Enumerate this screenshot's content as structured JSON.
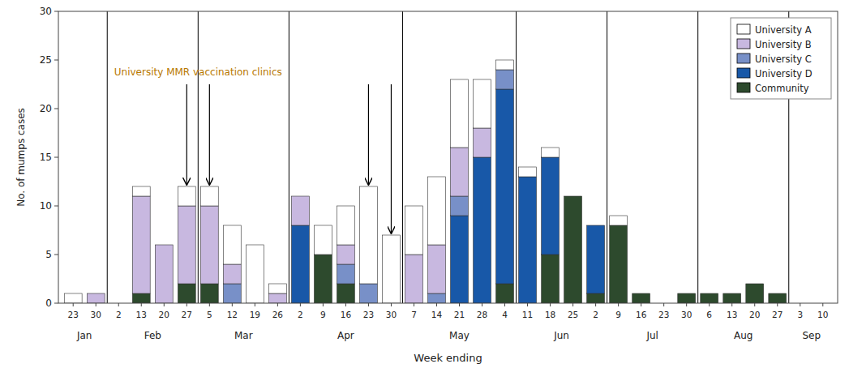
{
  "chart_data": {
    "type": "bar",
    "stacked": true,
    "grid": false,
    "legend": "upper right",
    "y_label": "No. of mumps cases",
    "x_label": "Week ending",
    "categories": [
      "23",
      "30",
      "2",
      "13",
      "20",
      "27",
      "5",
      "12",
      "19",
      "26",
      "2",
      "9",
      "16",
      "23",
      "30",
      "7",
      "14",
      "21",
      "28",
      "4",
      "11",
      "18",
      "25",
      "2",
      "9",
      "16",
      "23",
      "30",
      "6",
      "13",
      "20",
      "27",
      "3",
      "10"
    ],
    "month_groups": [
      {
        "label": "Jan",
        "weeks": 2
      },
      {
        "label": "Feb",
        "weeks": 4
      },
      {
        "label": "Mar",
        "weeks": 4
      },
      {
        "label": "Apr",
        "weeks": 5
      },
      {
        "label": "May",
        "weeks": 5
      },
      {
        "label": "Jun",
        "weeks": 4
      },
      {
        "label": "Jul",
        "weeks": 4
      },
      {
        "label": "Aug",
        "weeks": 4
      },
      {
        "label": "Sep",
        "weeks": 2
      }
    ],
    "series": [
      {
        "name": "University A",
        "color": "#ffffff",
        "values": [
          1,
          0,
          0,
          1,
          0,
          2,
          2,
          4,
          6,
          1,
          0,
          3,
          4,
          10,
          7,
          5,
          7,
          7,
          5,
          1,
          1,
          1,
          0,
          0,
          1,
          0,
          0,
          0,
          0,
          0,
          0,
          0,
          0,
          0
        ]
      },
      {
        "name": "University B",
        "color": "#c8b8e0",
        "values": [
          0,
          1,
          0,
          10,
          6,
          8,
          8,
          2,
          0,
          1,
          3,
          0,
          2,
          0,
          0,
          5,
          5,
          5,
          3,
          0,
          0,
          0,
          0,
          0,
          0,
          0,
          0,
          0,
          0,
          0,
          0,
          0,
          0,
          0
        ]
      },
      {
        "name": "University C",
        "color": "#7890c8",
        "values": [
          0,
          0,
          0,
          0,
          0,
          0,
          0,
          2,
          0,
          0,
          0,
          0,
          2,
          2,
          0,
          0,
          1,
          2,
          0,
          2,
          0,
          0,
          0,
          0,
          0,
          0,
          0,
          0,
          0,
          0,
          0,
          0,
          0,
          0
        ]
      },
      {
        "name": "University D",
        "color": "#1858a8",
        "values": [
          0,
          0,
          0,
          0,
          0,
          0,
          0,
          0,
          0,
          0,
          8,
          0,
          0,
          0,
          0,
          0,
          0,
          9,
          15,
          20,
          13,
          10,
          0,
          7,
          0,
          0,
          0,
          0,
          0,
          0,
          0,
          0,
          0,
          0
        ]
      },
      {
        "name": "Community",
        "color": "#2d4a2d",
        "values": [
          0,
          0,
          0,
          1,
          0,
          2,
          2,
          0,
          0,
          0,
          0,
          5,
          2,
          0,
          0,
          0,
          0,
          0,
          0,
          2,
          0,
          5,
          11,
          1,
          8,
          1,
          0,
          1,
          1,
          1,
          2,
          1,
          0,
          0
        ]
      }
    ],
    "ylim": [
      0,
      30
    ],
    "yticks": [
      0,
      5,
      10,
      15,
      20,
      25,
      30
    ],
    "annotation": {
      "text": "University MMR vaccination clinics",
      "color": "#b87800",
      "x": 5.5,
      "y": 23.2,
      "arrows": [
        {
          "index": 5,
          "y_from": 22.5,
          "y_to": 12.2
        },
        {
          "index": 6,
          "y_from": 22.5,
          "y_to": 12.2
        },
        {
          "index": 13,
          "y_from": 22.5,
          "y_to": 12.2
        },
        {
          "index": 14,
          "y_from": 22.5,
          "y_to": 7.2
        }
      ]
    }
  }
}
